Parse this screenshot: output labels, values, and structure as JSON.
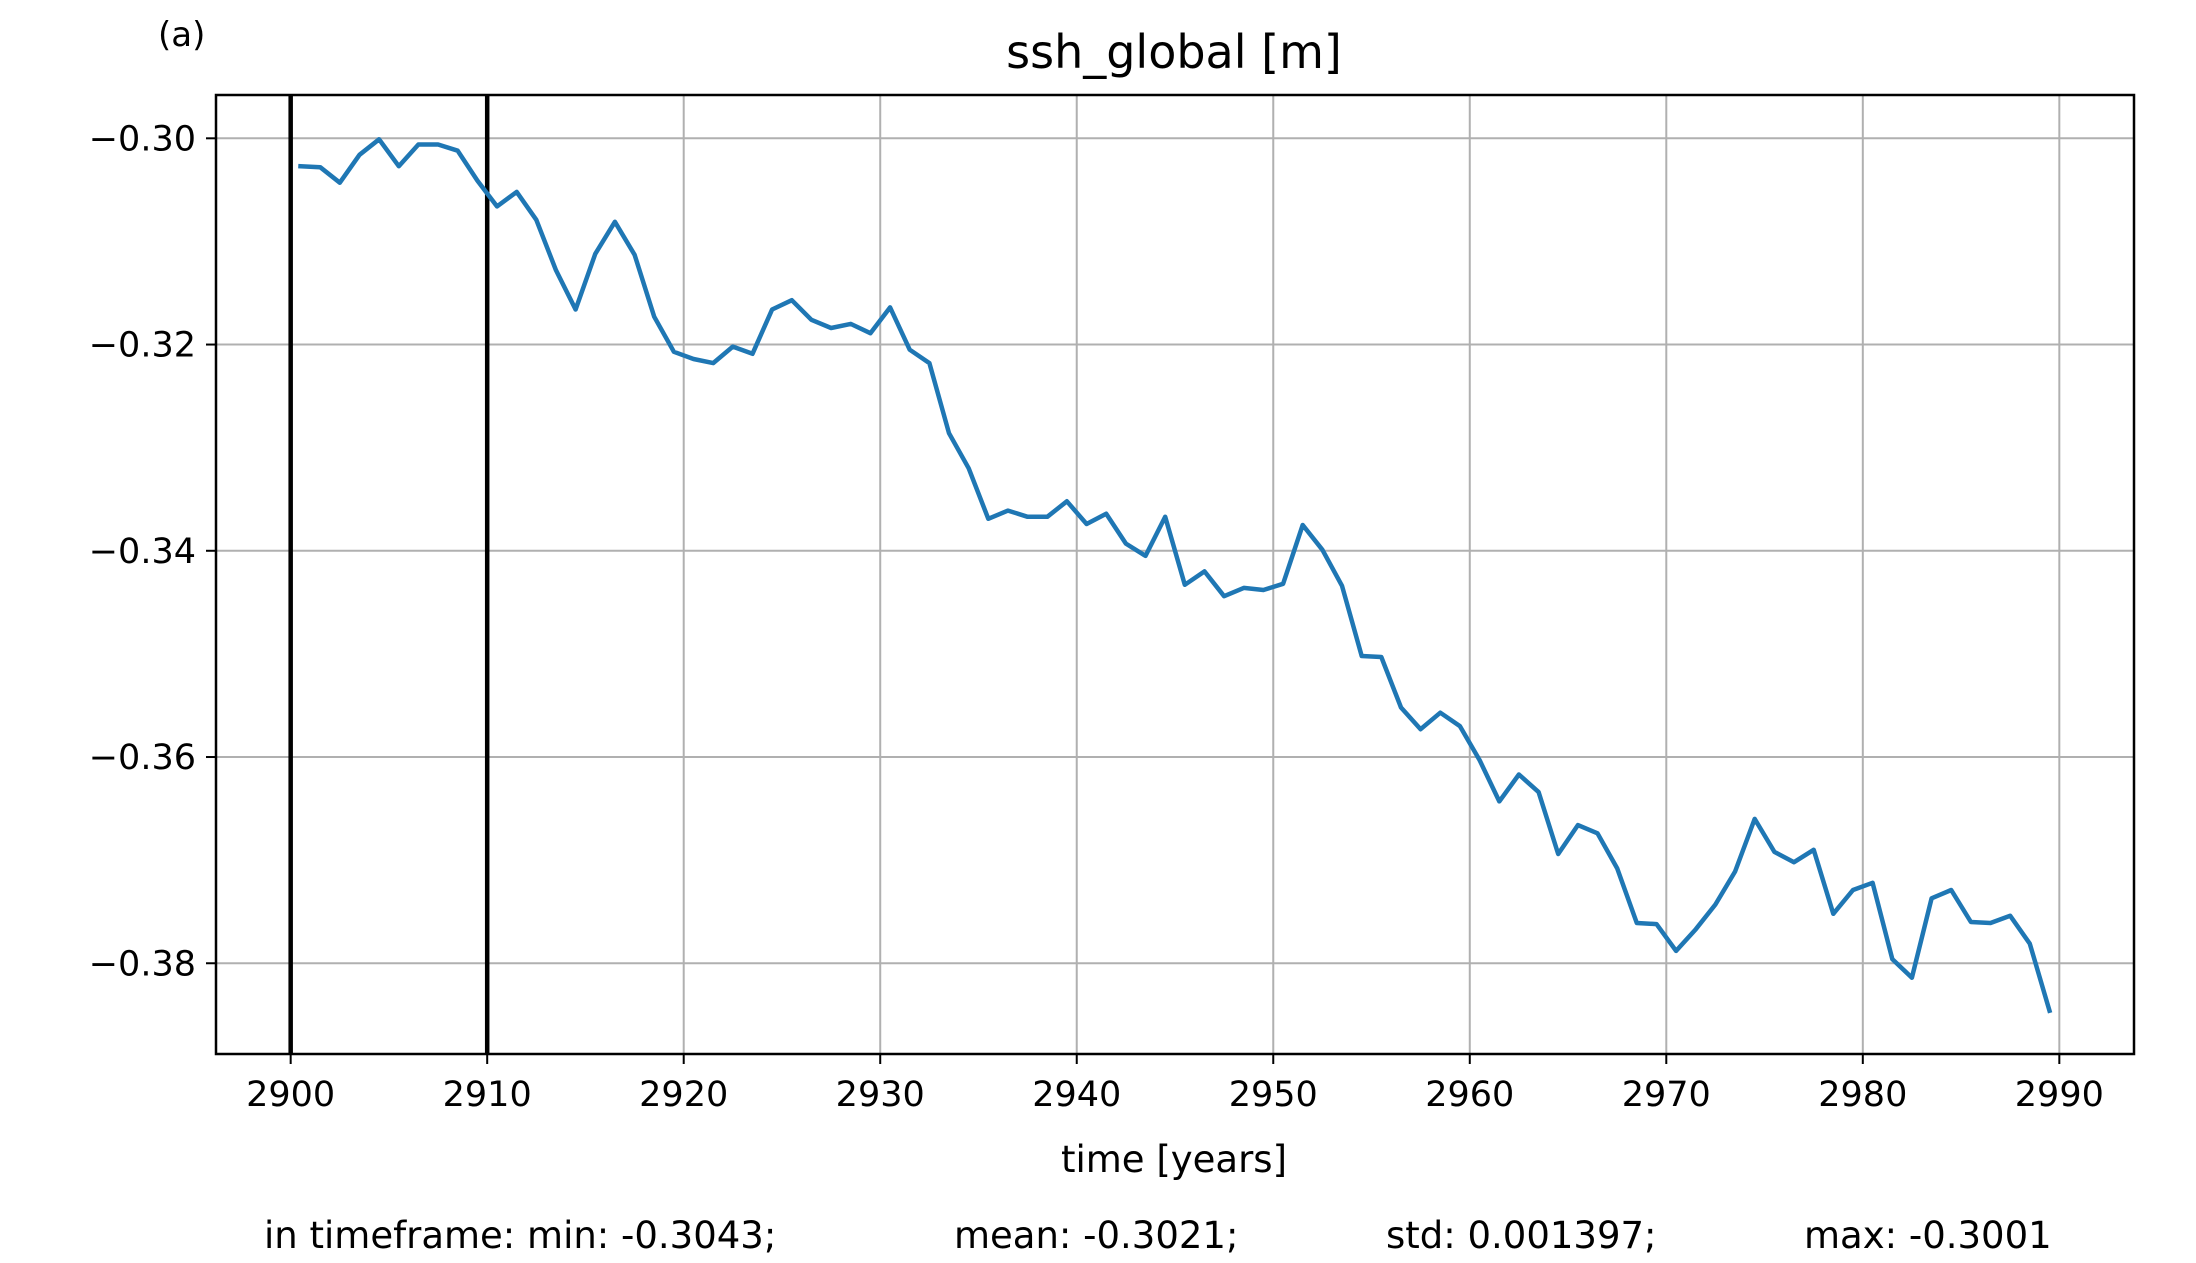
{
  "panel_label": "(a)",
  "stats": {
    "min": "in timeframe: min: -0.3043;",
    "mean": "mean: -0.3021;",
    "std": "std: 0.001397;",
    "max": "max: -0.3001"
  },
  "chart_data": {
    "type": "line",
    "title": "ssh_global [m]",
    "xlabel": "time [years]",
    "ylabel": "",
    "xlim": [
      2896.2,
      2993.8
    ],
    "ylim": [
      -0.3888,
      -0.2958
    ],
    "xticks": [
      2900,
      2910,
      2920,
      2930,
      2940,
      2950,
      2960,
      2970,
      2980,
      2990
    ],
    "yticks": [
      -0.3,
      -0.32,
      -0.34,
      -0.36,
      -0.38
    ],
    "ytick_labels": [
      "−0.30",
      "−0.32",
      "−0.34",
      "−0.36",
      "−0.38"
    ],
    "grid": true,
    "vlines": [
      2900,
      2910
    ],
    "vline_color": "#000000",
    "series": [
      {
        "color": "#1f77b4",
        "x": [
          2900.5,
          2901.5,
          2902.5,
          2903.5,
          2904.5,
          2905.5,
          2906.5,
          2907.5,
          2908.5,
          2909.5,
          2910.5,
          2911.5,
          2912.5,
          2913.5,
          2914.5,
          2915.5,
          2916.5,
          2917.5,
          2918.5,
          2919.5,
          2920.5,
          2921.5,
          2922.5,
          2923.5,
          2924.5,
          2925.5,
          2926.5,
          2927.5,
          2928.5,
          2929.5,
          2930.5,
          2931.5,
          2932.5,
          2933.5,
          2934.5,
          2935.5,
          2936.5,
          2937.5,
          2938.5,
          2939.5,
          2940.5,
          2941.5,
          2942.5,
          2943.5,
          2944.5,
          2945.5,
          2946.5,
          2947.5,
          2948.5,
          2949.5,
          2950.5,
          2951.5,
          2952.5,
          2953.5,
          2954.5,
          2955.5,
          2956.5,
          2957.5,
          2958.5,
          2959.5,
          2960.5,
          2961.5,
          2962.5,
          2963.5,
          2964.5,
          2965.5,
          2966.5,
          2967.5,
          2968.5,
          2969.5,
          2970.5,
          2971.5,
          2972.5,
          2973.5,
          2974.5,
          2975.5,
          2976.5,
          2977.5,
          2978.5,
          2979.5,
          2980.5,
          2981.5,
          2982.5,
          2983.5,
          2984.5,
          2985.5,
          2986.5,
          2987.5,
          2988.5,
          2989.5
        ],
        "y": [
          -0.3027,
          -0.3028,
          -0.3043,
          -0.3016,
          -0.3001,
          -0.3027,
          -0.3006,
          -0.3006,
          -0.3012,
          -0.3041,
          -0.3066,
          -0.3052,
          -0.3079,
          -0.3128,
          -0.3166,
          -0.3112,
          -0.3081,
          -0.3113,
          -0.3173,
          -0.3207,
          -0.3214,
          -0.3218,
          -0.3202,
          -0.3209,
          -0.3166,
          -0.3157,
          -0.3176,
          -0.3184,
          -0.318,
          -0.3189,
          -0.3164,
          -0.3205,
          -0.3218,
          -0.3286,
          -0.332,
          -0.3369,
          -0.3361,
          -0.3367,
          -0.3367,
          -0.3352,
          -0.3374,
          -0.3364,
          -0.3393,
          -0.3405,
          -0.3367,
          -0.3433,
          -0.342,
          -0.3444,
          -0.3436,
          -0.3438,
          -0.3432,
          -0.3375,
          -0.3399,
          -0.3434,
          -0.3502,
          -0.3503,
          -0.3552,
          -0.3573,
          -0.3557,
          -0.357,
          -0.3603,
          -0.3643,
          -0.3617,
          -0.3634,
          -0.3694,
          -0.3666,
          -0.3674,
          -0.3708,
          -0.3761,
          -0.3762,
          -0.3788,
          -0.3767,
          -0.3743,
          -0.3711,
          -0.366,
          -0.3692,
          -0.3702,
          -0.369,
          -0.3752,
          -0.3729,
          -0.3722,
          -0.3796,
          -0.3814,
          -0.3737,
          -0.3729,
          -0.376,
          -0.3761,
          -0.3754,
          -0.3781,
          -0.3846
        ]
      }
    ]
  }
}
